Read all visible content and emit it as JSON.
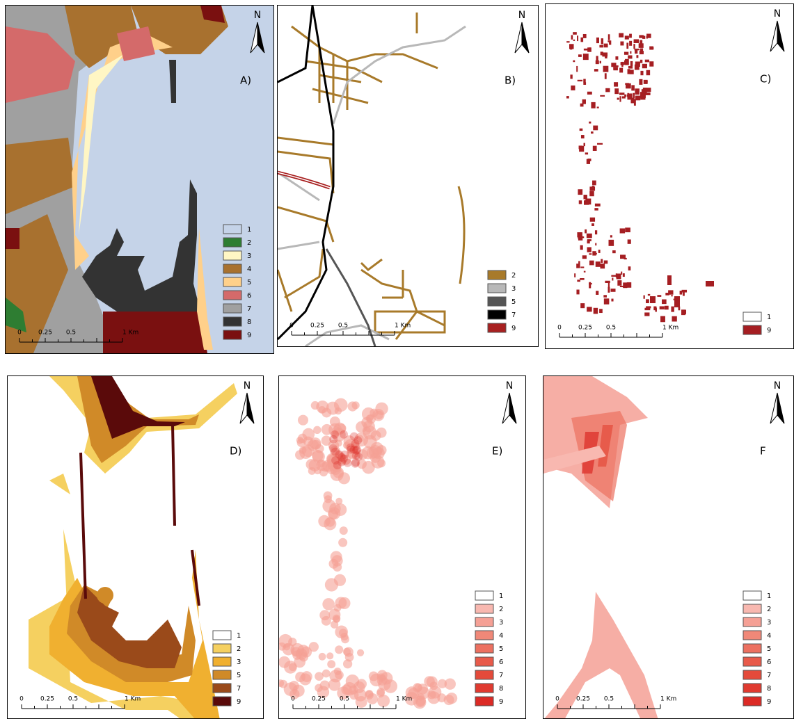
{
  "north": "N",
  "scale_labels": [
    "0",
    "0.25",
    "0.5",
    "1 Km"
  ],
  "panels": [
    {
      "label": "A)",
      "legend": [
        {
          "label": "1",
          "color": "#c5d3e8"
        },
        {
          "label": "2",
          "color": "#2e7d32"
        },
        {
          "label": "3",
          "color": "#fff6c4"
        },
        {
          "label": "4",
          "color": "#a8712f"
        },
        {
          "label": "5",
          "color": "#ffd08a"
        },
        {
          "label": "6",
          "color": "#d46a6a"
        },
        {
          "label": "7",
          "color": "#a0a0a0"
        },
        {
          "label": "8",
          "color": "#333333"
        },
        {
          "label": "9",
          "color": "#7a1010"
        }
      ]
    },
    {
      "label": "B)",
      "legend": [
        {
          "label": "2",
          "color": "#a87a2a"
        },
        {
          "label": "3",
          "color": "#b8b8b8"
        },
        {
          "label": "5",
          "color": "#555555"
        },
        {
          "label": "7",
          "color": "#000000"
        },
        {
          "label": "9",
          "color": "#a82020"
        }
      ]
    },
    {
      "label": "C)",
      "legend": [
        {
          "label": "1",
          "color": "#ffffff"
        },
        {
          "label": "9",
          "color": "#a51e22"
        }
      ]
    },
    {
      "label": "D)",
      "legend": [
        {
          "label": "1",
          "color": "#ffffff"
        },
        {
          "label": "2",
          "color": "#f5d060"
        },
        {
          "label": "3",
          "color": "#f0b030"
        },
        {
          "label": "5",
          "color": "#d08a28"
        },
        {
          "label": "7",
          "color": "#9a4a1a"
        },
        {
          "label": "9",
          "color": "#5a0a0a"
        }
      ]
    },
    {
      "label": "E)",
      "legend": [
        {
          "label": "1",
          "color": "#ffffff"
        },
        {
          "label": "2",
          "color": "#f8b8b0"
        },
        {
          "label": "3",
          "color": "#f5a095"
        },
        {
          "label": "4",
          "color": "#f08878"
        },
        {
          "label": "5",
          "color": "#ec7060"
        },
        {
          "label": "6",
          "color": "#e85a4a"
        },
        {
          "label": "7",
          "color": "#e44a3a"
        },
        {
          "label": "8",
          "color": "#e03a30"
        },
        {
          "label": "9",
          "color": "#dc2a25"
        }
      ]
    },
    {
      "label": "F",
      "legend": [
        {
          "label": "1",
          "color": "#ffffff"
        },
        {
          "label": "2",
          "color": "#f8b8b0"
        },
        {
          "label": "3",
          "color": "#f5a095"
        },
        {
          "label": "4",
          "color": "#f08878"
        },
        {
          "label": "5",
          "color": "#ec7060"
        },
        {
          "label": "6",
          "color": "#e85a4a"
        },
        {
          "label": "7",
          "color": "#e44a3a"
        },
        {
          "label": "8",
          "color": "#e03a30"
        },
        {
          "label": "9",
          "color": "#dc2a25"
        }
      ]
    }
  ]
}
